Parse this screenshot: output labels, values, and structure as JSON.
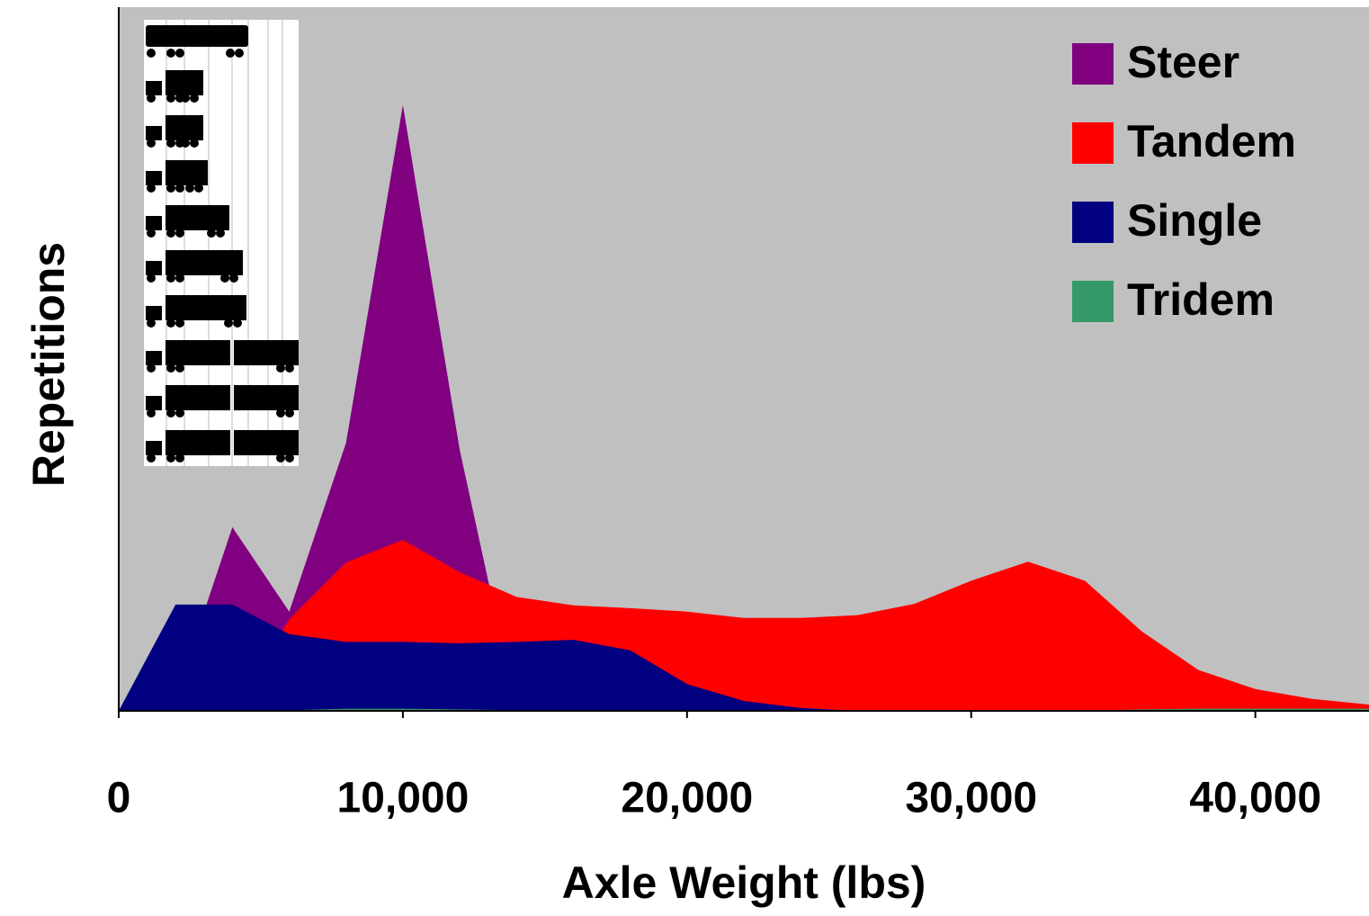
{
  "chart_data": {
    "type": "area",
    "x_label": "Axle Weight (lbs)",
    "y_label": "Repetitions",
    "x": [
      0,
      2000,
      4000,
      6000,
      8000,
      10000,
      12000,
      14000,
      16000,
      18000,
      20000,
      22000,
      24000,
      26000,
      28000,
      30000,
      32000,
      34000,
      36000,
      38000,
      40000,
      42000,
      44000
    ],
    "series": [
      {
        "name": "Steer",
        "color": "#800080",
        "values": [
          0,
          2,
          26.1,
          14.1,
          38.1,
          86.1,
          37.1,
          0,
          0,
          0,
          0,
          0,
          0,
          0,
          0,
          0,
          0,
          0,
          0,
          0,
          0,
          0,
          0
        ]
      },
      {
        "name": "Tandem",
        "color": "#ff0000",
        "values": [
          0,
          0,
          0,
          13,
          21.1,
          24.3,
          19.7,
          16.2,
          15.0,
          14.6,
          14.1,
          13.2,
          13.2,
          13.6,
          15.2,
          18.5,
          21.2,
          18.5,
          11.3,
          5.8,
          3.1,
          1.7,
          0.9
        ]
      },
      {
        "name": "Single",
        "color": "#000080",
        "values": [
          0,
          15.1,
          15.1,
          10.9,
          9.8,
          9.8,
          9.6,
          9.8,
          10.1,
          8.6,
          3.8,
          1.4,
          0.4,
          0,
          0,
          0,
          0,
          0,
          0,
          0,
          0,
          0,
          0
        ]
      },
      {
        "name": "Tridem",
        "color": "#339966",
        "values": [
          0,
          0,
          0,
          0.1,
          0.3,
          0.3,
          0.2,
          0.1,
          0,
          0,
          0,
          0,
          0,
          0,
          0,
          0,
          0,
          0,
          0.2,
          0.3,
          0.3,
          0.3,
          0.3
        ]
      }
    ],
    "xlim": [
      0,
      44000
    ],
    "xticks": [
      0,
      {
        "value": 10000,
        "label": "10,000"
      },
      {
        "value": 20000,
        "label": "20,000"
      },
      {
        "value": 30000,
        "label": "30,000"
      },
      {
        "value": 40000,
        "label": "40,000"
      }
    ],
    "ylim": [
      0,
      100
    ],
    "plot_background": "#c0c0c0",
    "legend": "top-right"
  }
}
